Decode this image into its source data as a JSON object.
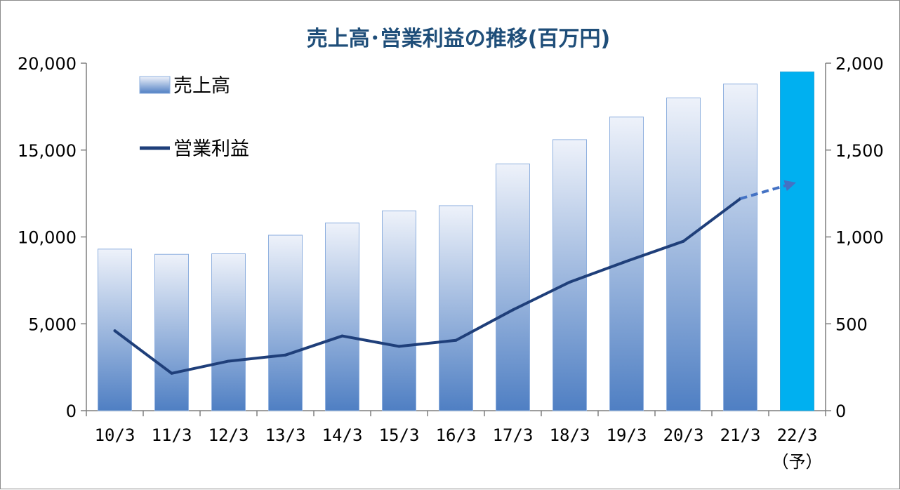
{
  "chart_data": {
    "type": "bar",
    "title": "売上高･営業利益の推移(百万円)",
    "categories": [
      "10/3",
      "11/3",
      "12/3",
      "13/3",
      "14/3",
      "15/3",
      "16/3",
      "17/3",
      "18/3",
      "19/3",
      "20/3",
      "21/3",
      "22/3"
    ],
    "category_sublabels": [
      "",
      "",
      "",
      "",
      "",
      "",
      "",
      "",
      "",
      "",
      "",
      "",
      "（予）"
    ],
    "series": [
      {
        "name": "売上高",
        "kind": "bar",
        "axis": "left",
        "values": [
          9300,
          9000,
          9030,
          10100,
          10800,
          11500,
          11800,
          14200,
          15600,
          16900,
          18000,
          18800,
          19500
        ],
        "forecast_index": 12
      },
      {
        "name": "営業利益",
        "kind": "line",
        "axis": "right",
        "values": [
          460,
          215,
          285,
          320,
          430,
          370,
          405,
          580,
          740,
          860,
          975,
          1220,
          1315
        ],
        "forecast_index": 12
      }
    ],
    "ylim_left": [
      0,
      20000
    ],
    "ylim_right": [
      0,
      2000
    ],
    "yticks_left": [
      "0",
      "5,000",
      "10,000",
      "15,000",
      "20,000"
    ],
    "yticks_right": [
      "0",
      "500",
      "1,000",
      "1,500",
      "2,000"
    ],
    "grid": false,
    "legend_position": "top-left",
    "colors": {
      "title": "#1f4e79",
      "bar_top": "#eef2fa",
      "bar_bottom": "#4f7fc3",
      "bar_border": "#8fb0df",
      "forecast_bar": "#00b0f0",
      "line": "#1f3f7a",
      "forecast_line": "#4472c4",
      "axis": "#7f7f7f"
    }
  }
}
